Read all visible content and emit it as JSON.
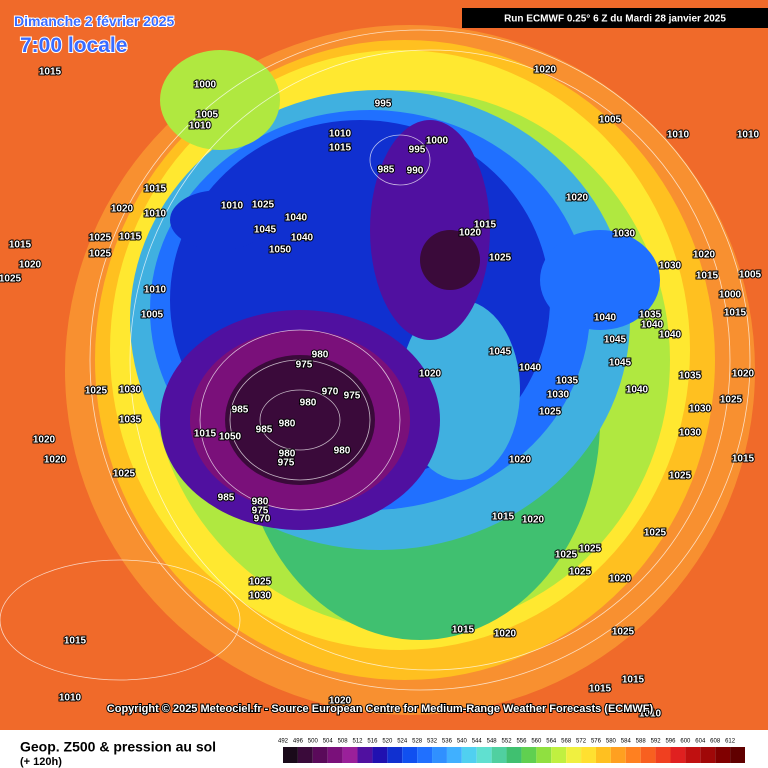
{
  "header": {
    "date": "Dimanche 2 février 2025",
    "time": "7:00 locale",
    "run": "Run ECMWF 0.25° 6 Z du Mardi 28 janvier 2025"
  },
  "copyright": "Copyright © 2025 Meteociel.fr - Source European Centre for Medium-Range Weather Forecasts (ECMWF)",
  "legend": {
    "title": "Geop. Z500 & pression au sol",
    "subtitle": "(+ 120h)",
    "levels": [
      492,
      496,
      500,
      504,
      508,
      512,
      516,
      520,
      524,
      528,
      532,
      536,
      540,
      544,
      548,
      552,
      556,
      560,
      564,
      568,
      572,
      576,
      580,
      584,
      588,
      592,
      596,
      600,
      604,
      608,
      612
    ],
    "colors": [
      "#1a0a1a",
      "#3a0a3a",
      "#5a0a5a",
      "#7a107a",
      "#9a209a",
      "#5010a0",
      "#2010b0",
      "#1030d0",
      "#1050f0",
      "#2070ff",
      "#3090ff",
      "#40b0ff",
      "#50d0f0",
      "#60e0d0",
      "#50d0a0",
      "#40c070",
      "#60d050",
      "#90e040",
      "#c0f040",
      "#f0f040",
      "#ffe030",
      "#ffc020",
      "#ffa020",
      "#ff8020",
      "#f86020",
      "#f04020",
      "#e02020",
      "#c01010",
      "#a00808",
      "#800000",
      "#600000"
    ]
  },
  "isobar_labels": [
    1015,
    1020,
    1000,
    1005,
    1010,
    995,
    1005,
    1010,
    1010,
    1010,
    1000,
    995,
    1015,
    990,
    985,
    1020,
    1010,
    1025,
    1015,
    1020,
    1010,
    1040,
    1045,
    1015,
    1020,
    1030,
    1040,
    1050,
    1015,
    1025,
    1015,
    1020,
    1025,
    1025,
    1020,
    1030,
    1015,
    1005,
    1025,
    1010,
    1000,
    1005,
    1040,
    1035,
    1040,
    1045,
    1040,
    1015,
    1045,
    980,
    975,
    1040,
    1020,
    1045,
    1035,
    1020,
    1035,
    970,
    975,
    985,
    980,
    1040,
    1030,
    1025,
    1030,
    1030,
    1025,
    1025,
    1035,
    980,
    985,
    1015,
    1050,
    1030,
    1020,
    980,
    980,
    975,
    1020,
    1015,
    1020,
    1025,
    1025,
    985,
    980,
    975,
    970,
    1015,
    1020,
    1025,
    1025,
    1025,
    1025,
    1020,
    1025,
    1030,
    1015,
    1015,
    1020,
    1025,
    1015,
    1015,
    1020,
    1010,
    1010
  ]
}
